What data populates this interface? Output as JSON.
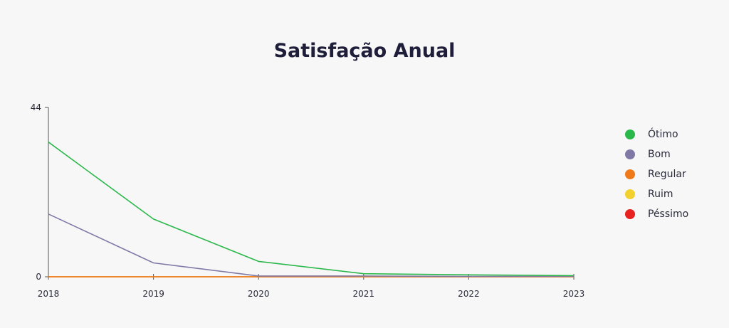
{
  "chart_data": {
    "type": "line",
    "title": "Satisfação Anual",
    "xlabel": "",
    "ylabel": "",
    "x": [
      "2018",
      "2019",
      "2020",
      "2021",
      "2022",
      "2023"
    ],
    "ylim": [
      0,
      44
    ],
    "yticks": [
      "0",
      "44"
    ],
    "grid": false,
    "legend_position": "right",
    "series": [
      {
        "name": "Ótimo",
        "color": "#2bb84a",
        "values": [
          35,
          15,
          4,
          0.8,
          0.5,
          0.3
        ]
      },
      {
        "name": "Bom",
        "color": "#8079a6",
        "values": [
          16.3,
          3.6,
          0.2,
          0.2,
          0.1,
          0.1
        ]
      },
      {
        "name": "Regular",
        "color": "#f07a1a",
        "values": [
          0,
          0,
          0,
          0,
          0,
          0
        ]
      },
      {
        "name": "Ruim",
        "color": "#f2d02e",
        "values": [
          0,
          0,
          0,
          0,
          0,
          0
        ]
      },
      {
        "name": "Péssimo",
        "color": "#e82121",
        "values": [
          0,
          0,
          0,
          0,
          0,
          0
        ]
      }
    ]
  }
}
